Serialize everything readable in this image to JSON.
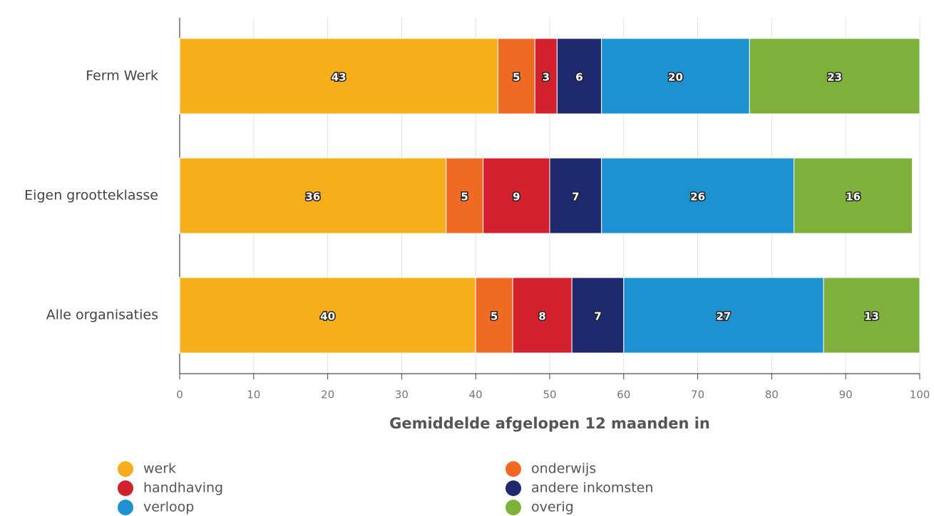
{
  "chart_data": {
    "type": "stacked_bar_horizontal",
    "categories": [
      "Ferm Werk",
      "Eigen grootteklasse",
      "Alle organisaties"
    ],
    "series": [
      {
        "name": "werk",
        "color": "#f6ae1b",
        "values": [
          43,
          36,
          40
        ]
      },
      {
        "name": "onderwijs",
        "color": "#ef6b24",
        "values": [
          5,
          5,
          5
        ]
      },
      {
        "name": "handhaving",
        "color": "#d3202f",
        "values": [
          3,
          9,
          8
        ]
      },
      {
        "name": "andere inkomsten",
        "color": "#1f2a6e",
        "values": [
          6,
          7,
          7
        ]
      },
      {
        "name": "verloop",
        "color": "#1e91d1",
        "values": [
          20,
          26,
          27
        ]
      },
      {
        "name": "overig",
        "color": "#7fb03c",
        "values": [
          23,
          16,
          13
        ]
      }
    ],
    "xlabel": "Gemiddelde afgelopen 12 maanden in",
    "xlim": [
      0,
      100
    ],
    "xticks": [
      0,
      10,
      20,
      30,
      40,
      50,
      60,
      70,
      80,
      90,
      100
    ],
    "grid": true,
    "legend": "bottom"
  }
}
